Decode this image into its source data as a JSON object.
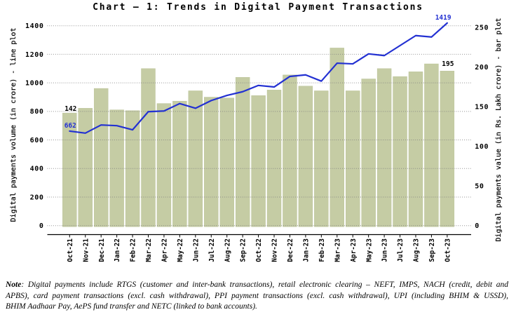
{
  "title": "Chart – 1: Trends in Digital Payment Transactions",
  "note": {
    "label": "Note",
    "lines": [
      ": Digital payments include RTGS (customer and inter-bank transactions), retail electronic clearing – NEFT, IMPS, NACH (credit, debit and",
      "APBS), card payment transactions (excl. cash withdrawal), PPI payment transactions (excl. cash withdrawal), UPI (including BHIM & USSD),",
      "BHIM Aadhaar Pay, AePS fund transfer and NETC (linked to bank accounts)."
    ]
  },
  "chart_data": {
    "type": "bar",
    "title": "Chart – 1: Trends in Digital Payment Transactions",
    "categories": [
      "Oct-21",
      "Nov-21",
      "Dec-21",
      "Jan-22",
      "Feb-22",
      "Mar-22",
      "Apr-22",
      "May-22",
      "Jun-22",
      "Jul-22",
      "Aug-22",
      "Sep-22",
      "Oct-22",
      "Nov-22",
      "Dec-22",
      "Jan-23",
      "Feb-23",
      "Mar-23",
      "Apr-23",
      "May-23",
      "Jun-23",
      "Jul-23",
      "Aug-23",
      "Sep-23",
      "Oct-23"
    ],
    "series": [
      {
        "name": "Digital payments value",
        "type": "bar",
        "axis": "right",
        "unit": "Rs. Lakh crore",
        "values": [
          142,
          148,
          173,
          146,
          145,
          198,
          154,
          157,
          170,
          162,
          161,
          187,
          164,
          171,
          190,
          176,
          170,
          224,
          170,
          185,
          198,
          188,
          194,
          204,
          195
        ]
      },
      {
        "name": "Digital payments volume",
        "type": "line",
        "axis": "left",
        "unit": "crore",
        "values": [
          662,
          648,
          705,
          700,
          671,
          798,
          803,
          855,
          822,
          876,
          912,
          938,
          982,
          971,
          1045,
          1056,
          1012,
          1138,
          1133,
          1203,
          1191,
          1261,
          1331,
          1321,
          1419
        ]
      }
    ],
    "left_axis": {
      "label": "Digital payments volume (in crore) - line plot",
      "min": 0,
      "max": 1400,
      "ticks": [
        0,
        200,
        400,
        600,
        800,
        1000,
        1200,
        1400
      ]
    },
    "right_axis": {
      "label": "Digital payments value (in Rs. Lakh crore) - bar plot",
      "min": 0,
      "max": 250,
      "ticks": [
        0,
        50,
        100,
        150,
        200,
        250
      ]
    },
    "annotations": [
      {
        "text": "662",
        "series": "line",
        "index": 0
      },
      {
        "text": "1419",
        "series": "line",
        "index": 24
      },
      {
        "text": "142",
        "series": "bar",
        "index": 0
      },
      {
        "text": "195",
        "series": "bar",
        "index": 24
      }
    ],
    "grid": "horizontal-dotted",
    "legend": "none",
    "colors": {
      "bar": "#c5cca4",
      "bar_border": "#b6bf92",
      "line": "#2331d2",
      "grid": "#7e7e7e",
      "axis": "#000000",
      "annotation_line": "#2331d2",
      "annotation_bar": "#000000"
    }
  }
}
